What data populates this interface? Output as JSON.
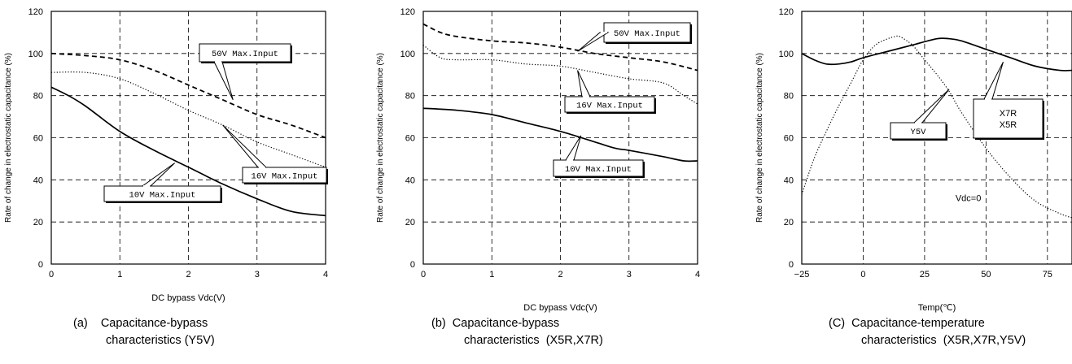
{
  "chart_data": [
    {
      "type": "line",
      "xlabel": "DC bypass Vdc(V)",
      "ylabel": "Rate of change in electrostatic capacitance (%)",
      "xlim": [
        0,
        4
      ],
      "ylim": [
        0,
        120
      ],
      "x_ticks": [
        "0",
        "1",
        "2",
        "3",
        "4"
      ],
      "y_ticks": [
        "0",
        "20",
        "40",
        "60",
        "80",
        "100",
        "120"
      ],
      "grid": true,
      "caption": [
        "(a)    Capacitance-bypass",
        "characteristics (Y5V)"
      ],
      "series": [
        {
          "name": "50V Max.Input",
          "style": "dashed",
          "x": [
            0,
            0.5,
            1,
            1.5,
            2,
            2.5,
            3,
            3.5,
            4
          ],
          "y": [
            100,
            99,
            97,
            92,
            85,
            78,
            71,
            66,
            60
          ]
        },
        {
          "name": "16V Max.Input",
          "style": "dotted",
          "x": [
            0,
            0.5,
            1,
            1.5,
            2,
            2.5,
            3,
            3.5,
            4
          ],
          "y": [
            91,
            91,
            88,
            81,
            73,
            66,
            58,
            52,
            46
          ]
        },
        {
          "name": "10V Max.Input",
          "style": "solid",
          "x": [
            0,
            0.25,
            0.5,
            1,
            1.5,
            2,
            2.5,
            3,
            3.5,
            4
          ],
          "y": [
            84,
            80,
            75,
            63,
            54,
            46,
            38,
            31,
            25,
            23
          ]
        }
      ],
      "callouts": [
        {
          "text": "50V Max.Input",
          "target": [
            2.65,
            78
          ]
        },
        {
          "text": "16V Max.Input",
          "target": [
            2.5,
            66
          ]
        },
        {
          "text": "10V Max.Input",
          "target": [
            1.8,
            48
          ]
        }
      ]
    },
    {
      "type": "line",
      "xlabel": "DC bypass Vdc(V)",
      "ylabel": "Rate of change in electrostatic capacitance (%)",
      "xlim": [
        0,
        4
      ],
      "ylim": [
        0,
        120
      ],
      "x_ticks": [
        "0",
        "1",
        "2",
        "3",
        "4"
      ],
      "y_ticks": [
        "0",
        "20",
        "40",
        "60",
        "80",
        "100",
        "120"
      ],
      "grid": true,
      "caption": [
        "(b)  Capacitance-bypass",
        "characteristics  (X5R,X7R)"
      ],
      "series": [
        {
          "name": "50V Max.Input",
          "style": "dashed",
          "x": [
            0,
            0.25,
            0.5,
            1,
            1.5,
            2,
            2.5,
            3,
            3.5,
            4
          ],
          "y": [
            114,
            110,
            108,
            106,
            105,
            103,
            100,
            98,
            96,
            92
          ]
        },
        {
          "name": "16V Max.Input",
          "style": "dotted",
          "x": [
            0,
            0.25,
            0.5,
            1,
            1.5,
            2,
            2.5,
            3,
            3.5,
            3.8,
            4
          ],
          "y": [
            104,
            98,
            97,
            97,
            95,
            94,
            91,
            88,
            86,
            80,
            76
          ]
        },
        {
          "name": "10V Max.Input",
          "style": "solid",
          "x": [
            0,
            0.5,
            1,
            1.5,
            2,
            2.5,
            2.8,
            3,
            3.5,
            3.8,
            4
          ],
          "y": [
            74,
            73,
            71,
            67,
            63,
            58,
            55,
            54,
            51,
            49,
            49
          ]
        }
      ],
      "callouts": [
        {
          "text": "50V Max.Input",
          "target": [
            2.25,
            101
          ]
        },
        {
          "text": "16V Max.Input",
          "target": [
            2.25,
            92
          ]
        },
        {
          "text": "10V Max.Input",
          "target": [
            2.3,
            61
          ]
        }
      ]
    },
    {
      "type": "line",
      "xlabel": "Temp(℃)",
      "ylabel": "Rate of change in electrostatic capacitance (%)",
      "xlim": [
        -25,
        85
      ],
      "ylim": [
        0,
        120
      ],
      "x_ticks": [
        "−25",
        "0",
        "25",
        "50",
        "75"
      ],
      "y_ticks": [
        "0",
        "20",
        "40",
        "60",
        "80",
        "100",
        "120"
      ],
      "grid": true,
      "caption": [
        "(C)  Capacitance-temperature",
        "characteristics  (X5R,X7R,Y5V)"
      ],
      "annotation": "Vdc=0",
      "series": [
        {
          "name": "X7R\nX5R",
          "style": "solid",
          "x": [
            -25,
            -20,
            -15,
            -10,
            -5,
            0,
            10,
            20,
            30,
            35,
            40,
            50,
            60,
            70,
            80,
            85
          ],
          "y": [
            100,
            97,
            95,
            95,
            96,
            98,
            101,
            104,
            107,
            107,
            106,
            102,
            98,
            94,
            92,
            92
          ]
        },
        {
          "name": "Y5V",
          "style": "dotted",
          "x": [
            -25,
            -20,
            -15,
            -10,
            -5,
            0,
            5,
            10,
            13,
            15,
            20,
            25,
            30,
            35,
            40,
            50,
            60,
            70,
            80,
            85
          ],
          "y": [
            33,
            50,
            63,
            75,
            86,
            97,
            104,
            107,
            108,
            108,
            104,
            97,
            90,
            82,
            72,
            55,
            41,
            30,
            24,
            22
          ]
        }
      ],
      "callouts": [
        {
          "text": "Y5V",
          "target": [
            35,
            83
          ]
        },
        {
          "text": "X7R\nX5R",
          "target": [
            57,
            96
          ]
        }
      ]
    }
  ]
}
